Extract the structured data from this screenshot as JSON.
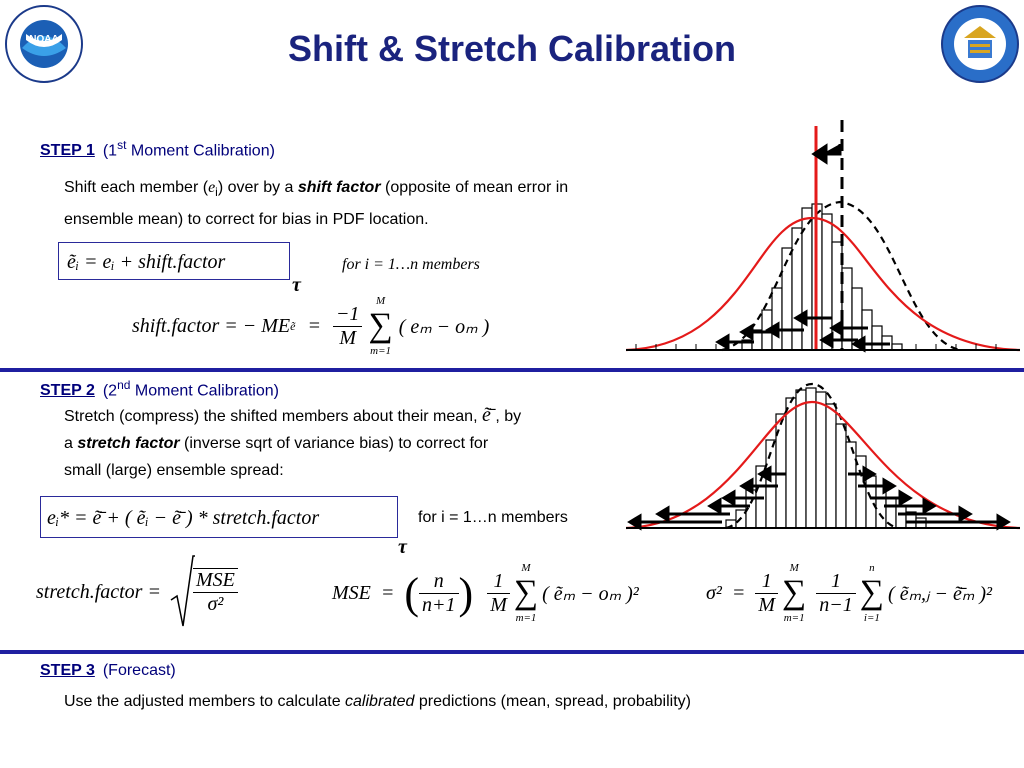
{
  "header": {
    "title": "Shift & Stretch Calibration"
  },
  "logos": {
    "left_icon": "noaa-logo",
    "right_icon": "department-of-commerce-seal"
  },
  "step1": {
    "label": "STEP 1",
    "subtitle_prefix": "(1",
    "subtitle_sup": "st",
    "subtitle_suffix": " Moment Calibration)",
    "line1_a": "Shift each member (",
    "line1_var": "e",
    "line1_sub": "i",
    "line1_b": ") over by a ",
    "line1_bold": "shift factor",
    "line1_c": " (opposite of mean error in",
    "line2": "ensemble mean) to correct for bias in PDF location.",
    "eq1": "ẽᵢ = eᵢ + shift.factor",
    "members_note": "for i = 1…n members",
    "tau": "τ",
    "eq2_lhs": "shift.factor = − ME",
    "eq2_sub": "ẽ",
    "eq2_frac_num": "−1",
    "eq2_frac_den": "M",
    "eq2_sum_top": "M",
    "eq2_sum_bottom": "m=1",
    "eq2_body": "( eₘ − oₘ )"
  },
  "step2": {
    "label": "STEP 2",
    "subtitle_prefix": "(2",
    "subtitle_sup": "nd",
    "subtitle_suffix": " Moment Calibration)",
    "line1_a": "Stretch (compress) the shifted members about their mean,",
    "line1_var": "ẽ̄",
    "line1_b": ", by",
    "line2_a": "a ",
    "line2_bold": "stretch factor",
    "line2_b": " (inverse sqrt of variance bias) to correct for",
    "line3": "small (large) ensemble spread:",
    "eq1": "eᵢ* = ẽ̄ + ( ẽᵢ − ẽ̄ ) * stretch.factor",
    "members_note": "for i = 1…n members",
    "tau": "τ",
    "eq_stretch_lhs": "stretch.factor =",
    "eq_stretch_num": "MSE",
    "eq_stretch_den": "σ²",
    "eq_mse_lhs": "MSE",
    "eq_mse_n_num": "n",
    "eq_mse_n_den": "n+1",
    "eq_mse_1_num": "1",
    "eq_mse_1_den": "M",
    "eq_mse_sum_top": "M",
    "eq_mse_sum_bottom": "m=1",
    "eq_mse_body": "( ẽₘ − oₘ )²",
    "eq_sig_lhs": "σ²",
    "eq_sig_1_num": "1",
    "eq_sig_1_den": "M",
    "eq_sig_sum1_top": "M",
    "eq_sig_sum1_bottom": "m=1",
    "eq_sig_2_num": "1",
    "eq_sig_2_den": "n−1",
    "eq_sig_sum2_top": "n",
    "eq_sig_sum2_bottom": "i=1",
    "eq_sig_body": "( ẽₘ,ⱼ − ẽ̄ₘ )²"
  },
  "step3": {
    "label": "STEP 3",
    "subtitle": "(Forecast)",
    "line_a": "Use the adjusted members to calculate ",
    "line_italic": "calibrated",
    "line_b": " predictions (mean, spread, probability)"
  },
  "colors": {
    "title": "#1a237e",
    "step": "#00007a",
    "rule": "#1f1fa0",
    "curve_red": "#e41a1a"
  }
}
